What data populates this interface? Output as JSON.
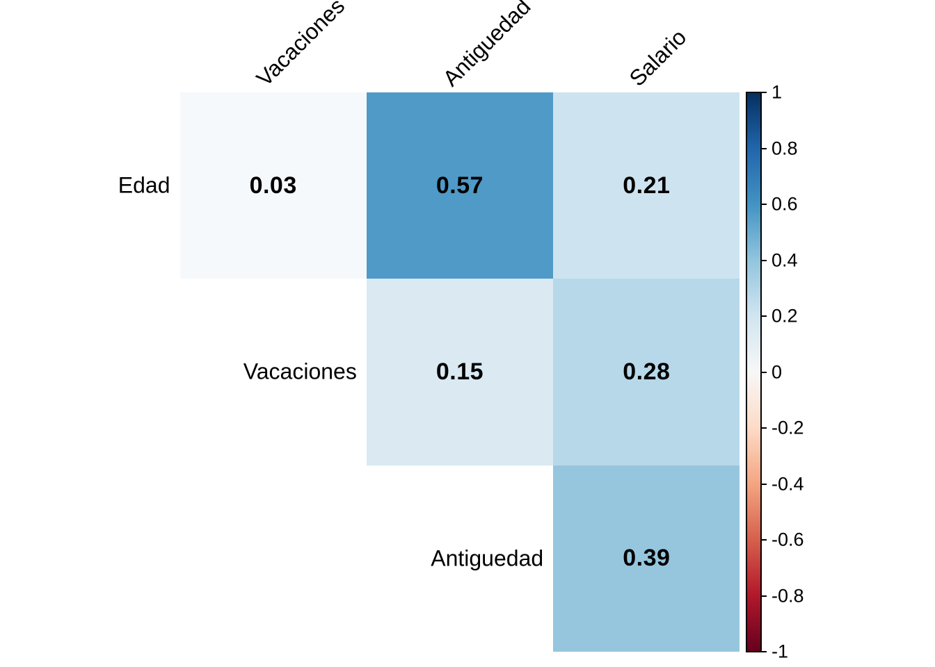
{
  "chart_data": {
    "type": "heatmap",
    "subtype": "correlation-matrix-upper-triangle",
    "title": "",
    "variables": [
      "Edad",
      "Vacaciones",
      "Antiguedad",
      "Salario"
    ],
    "row_labels": [
      "Edad",
      "Vacaciones",
      "Antiguedad"
    ],
    "col_labels": [
      "Vacaciones",
      "Antiguedad",
      "Salario"
    ],
    "cells": [
      {
        "row_index": 0,
        "col_index": 0,
        "row": "Edad",
        "col": "Vacaciones",
        "value": "0.03",
        "color": "#f6f9fb"
      },
      {
        "row_index": 0,
        "col_index": 1,
        "row": "Edad",
        "col": "Antiguedad",
        "value": "0.57",
        "color": "#4f9ac7"
      },
      {
        "row_index": 0,
        "col_index": 2,
        "row": "Edad",
        "col": "Salario",
        "value": "0.21",
        "color": "#cde3ef"
      },
      {
        "row_index": 1,
        "col_index": 1,
        "row": "Vacaciones",
        "col": "Antiguedad",
        "value": "0.15",
        "color": "#dae9f2"
      },
      {
        "row_index": 1,
        "col_index": 2,
        "row": "Vacaciones",
        "col": "Salario",
        "value": "0.28",
        "color": "#b7d8e9"
      },
      {
        "row_index": 2,
        "col_index": 2,
        "row": "Antiguedad",
        "col": "Salario",
        "value": "0.39",
        "color": "#96c6de"
      }
    ],
    "value_range": [
      -1,
      1
    ],
    "grid_on": false,
    "text_color": "#000000",
    "colorbar": {
      "position": "right",
      "tick_labels": [
        "1",
        "0.8",
        "0.6",
        "0.4",
        "0.2",
        "0",
        "-0.2",
        "-0.4",
        "-0.6",
        "-0.8",
        "-1"
      ],
      "tick_values": [
        1,
        0.8,
        0.6,
        0.4,
        0.2,
        0,
        -0.2,
        -0.4,
        -0.6,
        -0.8,
        -1
      ],
      "gradient_stops_top_to_bottom": [
        "#053061",
        "#2166ac",
        "#4393c3",
        "#92c5de",
        "#d1e5f0",
        "#f7f7f7",
        "#fddbc7",
        "#f4a582",
        "#d6604d",
        "#b2182b",
        "#67001f"
      ]
    }
  }
}
